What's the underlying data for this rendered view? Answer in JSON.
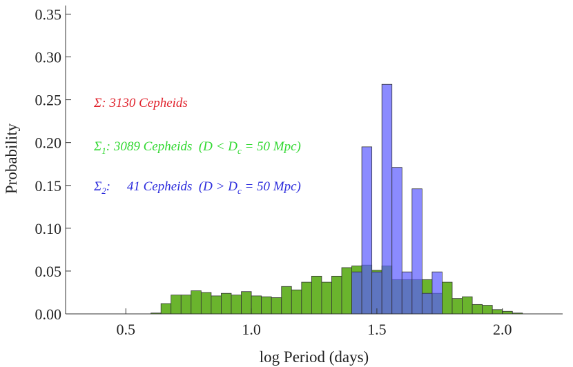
{
  "chart_data": {
    "type": "histogram",
    "xlabel": "log Period (days)",
    "ylabel": "Probability",
    "xlim": [
      0.26,
      2.24
    ],
    "ylim": [
      0,
      0.36
    ],
    "xticks": [
      {
        "value": 0.5,
        "label": "0.5"
      },
      {
        "value": 1.0,
        "label": "1.0"
      },
      {
        "value": 1.5,
        "label": "1.5"
      },
      {
        "value": 2.0,
        "label": "2.0"
      }
    ],
    "yticks": [
      {
        "value": 0,
        "label": "0.00"
      },
      {
        "value": 0.05,
        "label": "0.05"
      },
      {
        "value": 0.1,
        "label": "0.10"
      },
      {
        "value": 0.15,
        "label": "0.15"
      },
      {
        "value": 0.2,
        "label": "0.20"
      },
      {
        "value": 0.25,
        "label": "0.25"
      },
      {
        "value": 0.3,
        "label": "0.30"
      },
      {
        "value": 0.35,
        "label": "0.35"
      }
    ],
    "series": [
      {
        "color": "#6ab42d",
        "bins": [
          0.6,
          0.64,
          0.68,
          0.72,
          0.76,
          0.8,
          0.84,
          0.88,
          0.92,
          0.96,
          1.0,
          1.04,
          1.08,
          1.12,
          1.16,
          1.2,
          1.24,
          1.28,
          1.32,
          1.36,
          1.4,
          1.44,
          1.48,
          1.52,
          1.56,
          1.6,
          1.64,
          1.68,
          1.72,
          1.76,
          1.8,
          1.84,
          1.88,
          1.92,
          1.96,
          2.0,
          2.04,
          2.08
        ],
        "values": [
          0.001,
          0.012,
          0.022,
          0.022,
          0.027,
          0.025,
          0.021,
          0.024,
          0.022,
          0.026,
          0.021,
          0.02,
          0.019,
          0.032,
          0.028,
          0.037,
          0.044,
          0.037,
          0.044,
          0.054,
          0.056,
          0.057,
          0.051,
          0.056,
          0.04,
          0.04,
          0.04,
          0.04,
          0.024,
          0.037,
          0.018,
          0.02,
          0.011,
          0.01,
          0.005,
          0.003,
          0.001
        ]
      },
      {
        "color": "#5a5aff",
        "bins": [
          1.4,
          1.44,
          1.48,
          1.52,
          1.56,
          1.6,
          1.64,
          1.68,
          1.72,
          1.76
        ],
        "values": [
          0.049,
          0.195,
          0.049,
          0.268,
          0.171,
          0.049,
          0.146,
          0.024,
          0.049
        ]
      }
    ],
    "annotations": [
      {
        "color": "#e0202a",
        "parts": [
          "Σ: 3130 Cepheids"
        ]
      },
      {
        "color": "#30d830",
        "parts": [
          "Σ",
          "1",
          ": 3089 Cepheids  (D < D",
          "c",
          " = 50 Mpc)"
        ]
      },
      {
        "color": "#2b2bdc",
        "parts": [
          "Σ",
          "2",
          ":     41 Cepheids  (D > D",
          "c",
          " = 50 Mpc)"
        ]
      }
    ]
  }
}
